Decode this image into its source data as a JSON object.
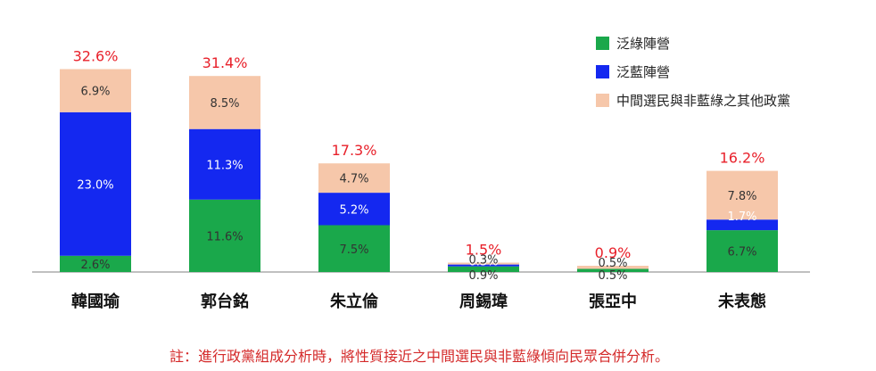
{
  "chart_data": {
    "type": "bar",
    "stacked": true,
    "categories": [
      "韓國瑜",
      "郭台銘",
      "朱立倫",
      "周錫瑋",
      "張亞中",
      "未表態"
    ],
    "series": [
      {
        "name": "泛綠陣營",
        "color": "#1aa84b",
        "values": [
          2.6,
          11.6,
          7.5,
          0.9,
          0.5,
          6.7
        ],
        "labels": [
          "2.6%",
          "11.6%",
          "7.5%",
          "0.9%",
          "0.5%",
          "6.7%"
        ]
      },
      {
        "name": "泛藍陣營",
        "color": "#1428f0",
        "values": [
          23.0,
          11.3,
          5.2,
          0.3,
          0.0,
          1.7
        ],
        "labels": [
          "23.0%",
          "11.3%",
          "5.2%",
          "0.3%",
          "",
          "1.7%"
        ]
      },
      {
        "name": "中間選民與非藍綠之其他政黨",
        "color": "#f6c7aa",
        "values": [
          6.9,
          8.5,
          4.7,
          0.3,
          0.5,
          7.8
        ],
        "labels": [
          "6.9%",
          "8.5%",
          "4.7%",
          "0.3%",
          "0.5%",
          "7.8%"
        ]
      }
    ],
    "totals": [
      "32.6%",
      "31.4%",
      "17.3%",
      "1.5%",
      "0.9%",
      "16.2%"
    ],
    "ylim": [
      0,
      35
    ],
    "legend_position": "top-right",
    "grid": false
  },
  "note": "註：進行政黨組成分析時，將性質接近之中間選民與非藍綠傾向民眾合併分析。"
}
